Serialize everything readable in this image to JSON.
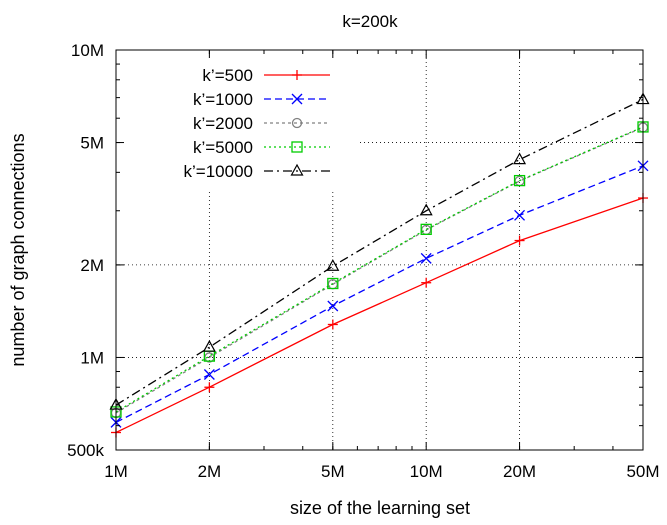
{
  "chart_data": {
    "type": "line",
    "title": "k=200k",
    "xlabel": "size of the learning set",
    "ylabel": "number of graph connections",
    "xscale": "log",
    "yscale": "log",
    "xlim": [
      1000000,
      50000000
    ],
    "ylim": [
      500000,
      10000000
    ],
    "grid": true,
    "legend_position": "top-left",
    "x": [
      1000000,
      2000000,
      5000000,
      10000000,
      20000000,
      50000000
    ],
    "x_ticks": [
      {
        "value": 1000000,
        "label": "1M"
      },
      {
        "value": 2000000,
        "label": "2M"
      },
      {
        "value": 5000000,
        "label": "5M"
      },
      {
        "value": 10000000,
        "label": "10M"
      },
      {
        "value": 20000000,
        "label": "20M"
      },
      {
        "value": 50000000,
        "label": "50M"
      }
    ],
    "y_ticks": [
      {
        "value": 500000,
        "label": "500k"
      },
      {
        "value": 1000000,
        "label": "1M"
      },
      {
        "value": 2000000,
        "label": "2M"
      },
      {
        "value": 5000000,
        "label": "5M"
      },
      {
        "value": 10000000,
        "label": "10M"
      }
    ],
    "series": [
      {
        "name": "k’=500",
        "color": "#ff0000",
        "dash": "solid",
        "marker": "plus",
        "values": [
          570000,
          800000,
          1280000,
          1750000,
          2400000,
          3300000
        ]
      },
      {
        "name": "k’=1000",
        "color": "#0000ff",
        "dash": "dashed",
        "marker": "x",
        "values": [
          615000,
          880000,
          1470000,
          2100000,
          2900000,
          4200000
        ]
      },
      {
        "name": "k’=2000",
        "color": "#808080",
        "dash": "dotted-gray",
        "marker": "circle",
        "values": [
          660000,
          1000000,
          1730000,
          2600000,
          3750000,
          5600000
        ]
      },
      {
        "name": "k’=5000",
        "color": "#00cc00",
        "dash": "dotted",
        "marker": "square",
        "values": [
          665000,
          1010000,
          1740000,
          2610000,
          3760000,
          5620000
        ]
      },
      {
        "name": "k’=10000",
        "color": "#000000",
        "dash": "dashdot",
        "marker": "triangle",
        "values": [
          700000,
          1080000,
          1980000,
          3000000,
          4400000,
          6900000
        ]
      }
    ]
  }
}
